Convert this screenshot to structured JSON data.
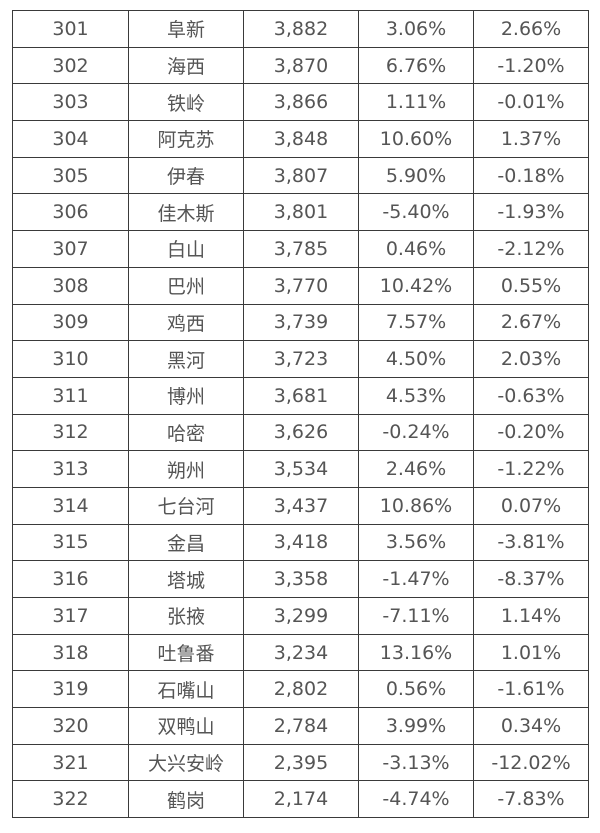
{
  "colors": {
    "positive": "#c8102e",
    "negative": "#2e8b1a",
    "border": "#3a3a3a",
    "text": "#555555"
  },
  "rows": [
    {
      "rank": "301",
      "city": "阜新",
      "value": "3,882",
      "growth1": "3.06%",
      "growth2": "2.66%"
    },
    {
      "rank": "302",
      "city": "海西",
      "value": "3,870",
      "growth1": "6.76%",
      "growth2": "-1.20%"
    },
    {
      "rank": "303",
      "city": "铁岭",
      "value": "3,866",
      "growth1": "1.11%",
      "growth2": "-0.01%"
    },
    {
      "rank": "304",
      "city": "阿克苏",
      "value": "3,848",
      "growth1": "10.60%",
      "growth2": "1.37%"
    },
    {
      "rank": "305",
      "city": "伊春",
      "value": "3,807",
      "growth1": "5.90%",
      "growth2": "-0.18%"
    },
    {
      "rank": "306",
      "city": "佳木斯",
      "value": "3,801",
      "growth1": "-5.40%",
      "growth2": "-1.93%"
    },
    {
      "rank": "307",
      "city": "白山",
      "value": "3,785",
      "growth1": "0.46%",
      "growth2": "-2.12%"
    },
    {
      "rank": "308",
      "city": "巴州",
      "value": "3,770",
      "growth1": "10.42%",
      "growth2": "0.55%"
    },
    {
      "rank": "309",
      "city": "鸡西",
      "value": "3,739",
      "growth1": "7.57%",
      "growth2": "2.67%"
    },
    {
      "rank": "310",
      "city": "黑河",
      "value": "3,723",
      "growth1": "4.50%",
      "growth2": "2.03%"
    },
    {
      "rank": "311",
      "city": "博州",
      "value": "3,681",
      "growth1": "4.53%",
      "growth2": "-0.63%"
    },
    {
      "rank": "312",
      "city": "哈密",
      "value": "3,626",
      "growth1": "-0.24%",
      "growth2": "-0.20%"
    },
    {
      "rank": "313",
      "city": "朔州",
      "value": "3,534",
      "growth1": "2.46%",
      "growth2": "-1.22%"
    },
    {
      "rank": "314",
      "city": "七台河",
      "value": "3,437",
      "growth1": "10.86%",
      "growth2": "0.07%"
    },
    {
      "rank": "315",
      "city": "金昌",
      "value": "3,418",
      "growth1": "3.56%",
      "growth2": "-3.81%"
    },
    {
      "rank": "316",
      "city": "塔城",
      "value": "3,358",
      "growth1": "-1.47%",
      "growth2": "-8.37%"
    },
    {
      "rank": "317",
      "city": "张掖",
      "value": "3,299",
      "growth1": "-7.11%",
      "growth2": "1.14%"
    },
    {
      "rank": "318",
      "city": "吐鲁番",
      "value": "3,234",
      "growth1": "13.16%",
      "growth2": "1.01%"
    },
    {
      "rank": "319",
      "city": "石嘴山",
      "value": "2,802",
      "growth1": "0.56%",
      "growth2": "-1.61%"
    },
    {
      "rank": "320",
      "city": "双鸭山",
      "value": "2,784",
      "growth1": "3.99%",
      "growth2": "0.34%"
    },
    {
      "rank": "321",
      "city": "大兴安岭",
      "value": "2,395",
      "growth1": "-3.13%",
      "growth2": "-12.02%"
    },
    {
      "rank": "322",
      "city": "鹤岗",
      "value": "2,174",
      "growth1": "-4.74%",
      "growth2": "-7.83%"
    }
  ]
}
